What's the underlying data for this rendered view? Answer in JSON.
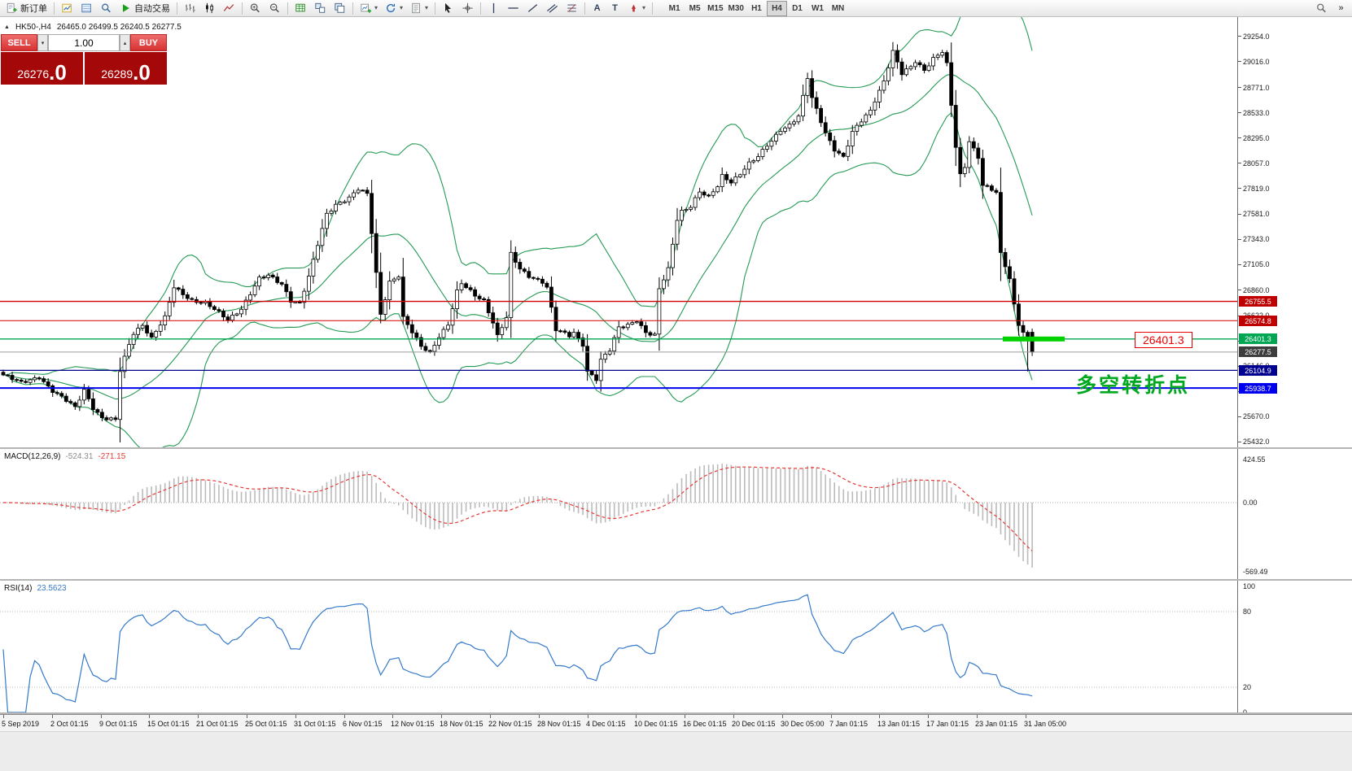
{
  "toolbar": {
    "new_order_label": "新订单",
    "autotrading_label": "自动交易",
    "timeframes": [
      "M1",
      "M5",
      "M15",
      "M30",
      "H1",
      "H4",
      "D1",
      "W1",
      "MN"
    ],
    "active_timeframe": "H4"
  },
  "icons": {
    "collapse_glyph": "▲",
    "dropdown_glyph": "▾",
    "spinner_up_glyph": "▴",
    "spinner_down_glyph": "▾",
    "overflow_glyph": "»",
    "text_tool_glyph": "A",
    "label_tool_glyph": "T",
    "fibonacci_tool_glyph": "F"
  },
  "trade_panel": {
    "sell_label": "SELL",
    "buy_label": "BUY",
    "volume": "1.00",
    "sell_price": "26276",
    "sell_price_frac": ".0",
    "buy_price": "26289",
    "buy_price_frac": ".0"
  },
  "chart_header": {
    "symbol_period": "HK50-,H4",
    "ohlc": "26465.0 26499.5 26240.5 26277.5"
  },
  "annotations": {
    "price_flag": "26401.3",
    "turning_point_text": "多空转折点"
  },
  "levels": [
    {
      "label": "26755.5",
      "value": 26755.5,
      "line_color": "#d40000",
      "box_bg": "#c00000",
      "box_fg": "#ffffff",
      "line_width": 1.4
    },
    {
      "label": "26574.8",
      "value": 26574.8,
      "line_color": "#d40000",
      "box_bg": "#c00000",
      "box_fg": "#ffffff",
      "line_width": 1
    },
    {
      "label": "26401.3",
      "value": 26401.3,
      "line_color": "#00a651",
      "box_bg": "#00a651",
      "box_fg": "#ffffff",
      "line_width": 1.4
    },
    {
      "label": "26277.5",
      "value": 26277.5,
      "line_color": "#9a9a9a",
      "box_bg": "#3d3d3d",
      "box_fg": "#ffffff",
      "line_width": 1
    },
    {
      "label": "26104.9",
      "value": 26104.9,
      "line_color": "#00008b",
      "box_bg": "#000090",
      "box_fg": "#ffffff",
      "line_width": 1.2
    },
    {
      "label": "25938.7",
      "value": 25938.7,
      "line_color": "#0000ee",
      "box_bg": "#0000ee",
      "box_fg": "#ffffff",
      "line_width": 2
    }
  ],
  "price_axis": {
    "labels": [
      "29254.0",
      "29016.0",
      "28771.0",
      "28533.0",
      "28295.0",
      "28057.0",
      "27819.0",
      "27581.0",
      "27343.0",
      "27105.0",
      "26860.0",
      "26622.0",
      "26384.0",
      "26146.0",
      "25908.0",
      "25670.0",
      "25432.0"
    ]
  },
  "macd": {
    "label": "MACD(12,26,9)",
    "main_value": "-524.31",
    "signal_value": "-271.15",
    "axis_max": "424.55",
    "axis_zero": "0.00",
    "axis_min": "-569.49"
  },
  "rsi": {
    "label": "RSI(14)",
    "value": "23.5623",
    "axis_max": "100",
    "axis_min": "0",
    "level_high": "80",
    "level_low": "20"
  },
  "time_axis": {
    "labels": [
      "5 Sep 2019",
      "2 Oct 01:15",
      "9 Oct 01:15",
      "15 Oct 01:15",
      "21 Oct 01:15",
      "25 Oct 01:15",
      "31 Oct 01:15",
      "6 Nov 01:15",
      "12 Nov 01:15",
      "18 Nov 01:15",
      "22 Nov 01:15",
      "28 Nov 01:15",
      "4 Dec 01:15",
      "10 Dec 01:15",
      "16 Dec 01:15",
      "20 Dec 01:15",
      "30 Dec 05:00",
      "7 Jan 01:15",
      "13 Jan 01:15",
      "17 Jan 01:15",
      "23 Jan 01:15",
      "31 Jan 05:00"
    ]
  },
  "colors": {
    "bollinger": "#259a54",
    "candle_up": "#ffffff",
    "candle_down": "#000000",
    "candle_border": "#000000",
    "macd_histogram": "#bbbbbb",
    "macd_signal": "#e53935",
    "rsi_line": "#3579c9",
    "highlight_segment": "#00d200",
    "annotation_green": "#00a81f",
    "annotation_red": "#e80000"
  },
  "chart_data": {
    "type": "candlestick",
    "symbol": "HK50-",
    "period": "H4",
    "candle_count": 230,
    "price_axis_range": [
      25432.0,
      29254.0
    ],
    "indicators": {
      "bollinger_period": 20,
      "bollinger_deviation": 2,
      "macd": [
        12,
        26,
        9
      ],
      "rsi_period": 14
    },
    "final_ohlc": {
      "open": 26465.0,
      "high": 26499.5,
      "low": 26240.5,
      "close": 26277.5
    },
    "close_waypoints": [
      [
        0,
        26062
      ],
      [
        4,
        25985
      ],
      [
        8,
        26047
      ],
      [
        11,
        25909
      ],
      [
        16,
        25755
      ],
      [
        18,
        25924
      ],
      [
        20,
        25755
      ],
      [
        22,
        25655
      ],
      [
        25,
        25632
      ],
      [
        26,
        26100
      ],
      [
        28,
        26350
      ],
      [
        29,
        26461
      ],
      [
        31,
        26537
      ],
      [
        33,
        26407
      ],
      [
        36,
        26599
      ],
      [
        38,
        26890
      ],
      [
        40,
        26829
      ],
      [
        42,
        26768
      ],
      [
        45,
        26737
      ],
      [
        47,
        26676
      ],
      [
        50,
        26584
      ],
      [
        53,
        26691
      ],
      [
        55,
        26829
      ],
      [
        57,
        26967
      ],
      [
        59,
        26998
      ],
      [
        62,
        26921
      ],
      [
        64,
        26768
      ],
      [
        66,
        26737
      ],
      [
        68,
        26983
      ],
      [
        70,
        27290
      ],
      [
        72,
        27581
      ],
      [
        74,
        27673
      ],
      [
        77,
        27734
      ],
      [
        79,
        27811
      ],
      [
        81,
        27765
      ],
      [
        82,
        27405
      ],
      [
        84,
        26637
      ],
      [
        86,
        26944
      ],
      [
        88,
        26998
      ],
      [
        89,
        26599
      ],
      [
        91,
        26461
      ],
      [
        93,
        26330
      ],
      [
        95,
        26277
      ],
      [
        97,
        26430
      ],
      [
        99,
        26537
      ],
      [
        101,
        26844
      ],
      [
        102,
        26921
      ],
      [
        105,
        26814
      ],
      [
        107,
        26768
      ],
      [
        109,
        26561
      ],
      [
        110,
        26430
      ],
      [
        112,
        26599
      ],
      [
        113,
        27198
      ],
      [
        115,
        27059
      ],
      [
        117,
        26998
      ],
      [
        120,
        26944
      ],
      [
        121,
        26890
      ],
      [
        123,
        26484
      ],
      [
        126,
        26430
      ],
      [
        127,
        26461
      ],
      [
        129,
        26353
      ],
      [
        130,
        26100
      ],
      [
        132,
        26023
      ],
      [
        133,
        26200
      ],
      [
        135,
        26292
      ],
      [
        137,
        26507
      ],
      [
        139,
        26537
      ],
      [
        141,
        26584
      ],
      [
        143,
        26461
      ],
      [
        145,
        26430
      ],
      [
        146,
        26867
      ],
      [
        148,
        27059
      ],
      [
        150,
        27535
      ],
      [
        151,
        27611
      ],
      [
        153,
        27657
      ],
      [
        155,
        27788
      ],
      [
        157,
        27734
      ],
      [
        159,
        27841
      ],
      [
        160,
        27941
      ],
      [
        162,
        27887
      ],
      [
        164,
        27964
      ],
      [
        166,
        28056
      ],
      [
        168,
        28117
      ],
      [
        170,
        28225
      ],
      [
        171,
        28271
      ],
      [
        173,
        28378
      ],
      [
        175,
        28424
      ],
      [
        177,
        28501
      ],
      [
        179,
        28862
      ],
      [
        180,
        28670
      ],
      [
        182,
        28455
      ],
      [
        183,
        28348
      ],
      [
        185,
        28194
      ],
      [
        187,
        28117
      ],
      [
        189,
        28348
      ],
      [
        191,
        28455
      ],
      [
        193,
        28555
      ],
      [
        194,
        28655
      ],
      [
        196,
        28839
      ],
      [
        198,
        29116
      ],
      [
        200,
        28901
      ],
      [
        202,
        28962
      ],
      [
        203,
        29016
      ],
      [
        205,
        28939
      ],
      [
        207,
        29054
      ],
      [
        209,
        29116
      ],
      [
        210,
        28993
      ],
      [
        212,
        28210
      ],
      [
        213,
        27941
      ],
      [
        214,
        28018
      ],
      [
        215,
        28271
      ],
      [
        217,
        28117
      ],
      [
        218,
        27865
      ],
      [
        220,
        27811
      ],
      [
        221,
        27788
      ],
      [
        222,
        27198
      ],
      [
        224,
        26967
      ],
      [
        225,
        26714
      ],
      [
        226,
        26537
      ],
      [
        228,
        26407
      ],
      [
        229,
        26277.5
      ]
    ]
  }
}
